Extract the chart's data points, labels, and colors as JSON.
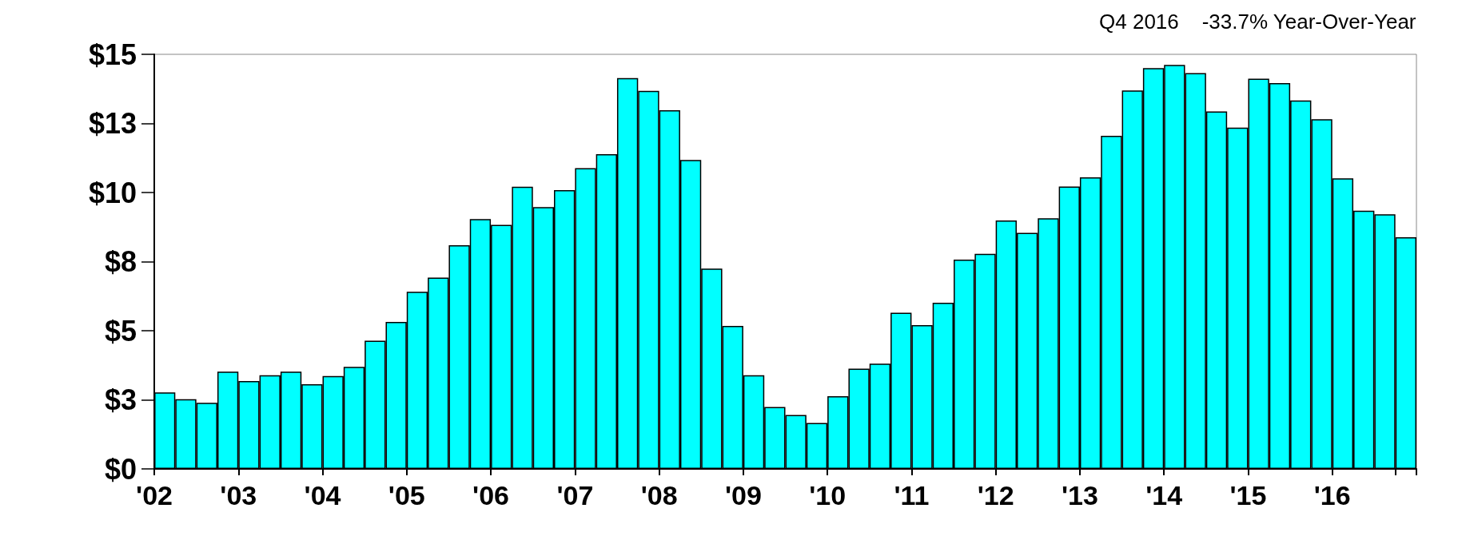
{
  "chart_data": {
    "type": "bar",
    "annotations": [
      "Q4 2016    -33.7% Year-Over-Year"
    ],
    "categories": [
      "'02",
      null,
      null,
      null,
      "'03",
      null,
      null,
      null,
      "'04",
      null,
      null,
      null,
      "'05",
      null,
      null,
      null,
      "'06",
      null,
      null,
      null,
      "'07",
      null,
      null,
      null,
      "'08",
      null,
      null,
      null,
      "'09",
      null,
      null,
      null,
      "'10",
      null,
      null,
      null,
      "'11",
      null,
      null,
      null,
      "'12",
      null,
      null,
      null,
      "'13",
      null,
      null,
      null,
      "'14",
      null,
      null,
      null,
      "'15",
      null,
      null,
      null,
      "'16",
      null,
      null,
      null
    ],
    "values": [
      2.77,
      2.52,
      2.39,
      3.52,
      3.18,
      3.39,
      3.52,
      3.06,
      3.36,
      3.69,
      4.64,
      5.32,
      6.41,
      6.92,
      8.09,
      9.04,
      8.83,
      10.21,
      9.47,
      10.09,
      10.88,
      11.39,
      14.14,
      13.68,
      12.98,
      11.18,
      7.25,
      5.17,
      3.39,
      2.24,
      1.95,
      1.66,
      2.63,
      3.63,
      3.81,
      5.65,
      5.2,
      6.01,
      7.57,
      7.78,
      8.99,
      8.54,
      9.07,
      10.22,
      10.55,
      12.05,
      13.69,
      14.5,
      14.62,
      14.32,
      12.93,
      12.35,
      14.12,
      13.96,
      13.33,
      12.65,
      10.51,
      9.34,
      9.21,
      8.38
    ],
    "color": "#00ffff",
    "ylim": [
      0,
      15
    ],
    "yticks": [
      {
        "value": 0,
        "label": "$0"
      },
      {
        "value": 2.5,
        "label": "$3"
      },
      {
        "value": 5,
        "label": "$5"
      },
      {
        "value": 7.5,
        "label": "$8"
      },
      {
        "value": 10,
        "label": "$10"
      },
      {
        "value": 12.5,
        "label": "$13"
      },
      {
        "value": 15,
        "label": "$15"
      }
    ],
    "grid": false
  }
}
